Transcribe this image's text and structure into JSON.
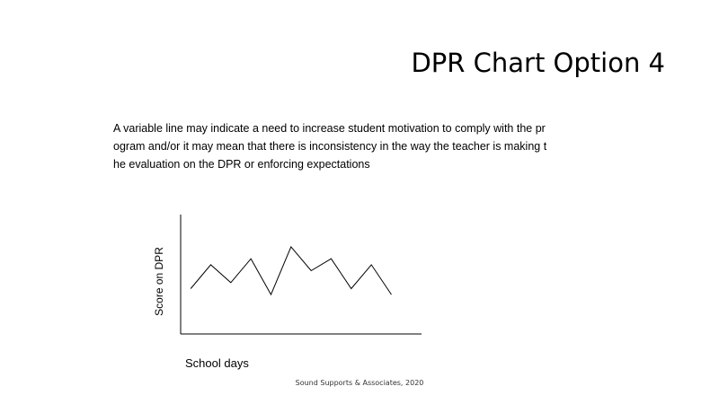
{
  "slide": {
    "title": "DPR Chart Option 4",
    "description_lines": [
      "A variable line may indicate a need to increase student motivation to comply with the pr",
      "ogram and/or it may mean that there is inconsistency in the way the teacher is making t",
      "he evaluation on the DPR or enforcing expectations"
    ],
    "footer": "Sound Supports & Associates, 2020"
  },
  "chart_data": {
    "type": "line",
    "title": "",
    "xlabel": "School days",
    "ylabel": "Score on DPR",
    "x": [
      1,
      2,
      3,
      4,
      5,
      6,
      7,
      8,
      9,
      10,
      11
    ],
    "series": [
      {
        "values": [
          3.8,
          5.8,
          4.3,
          6.3,
          3.3,
          7.3,
          5.3,
          6.3,
          3.8,
          5.8,
          3.3
        ]
      }
    ],
    "xlim": [
      0.5,
      12.5
    ],
    "ylim": [
      0,
      10
    ],
    "x_tick_labels": false,
    "y_tick_labels": false,
    "grid": false,
    "legend": false,
    "line_color": "#000000"
  }
}
